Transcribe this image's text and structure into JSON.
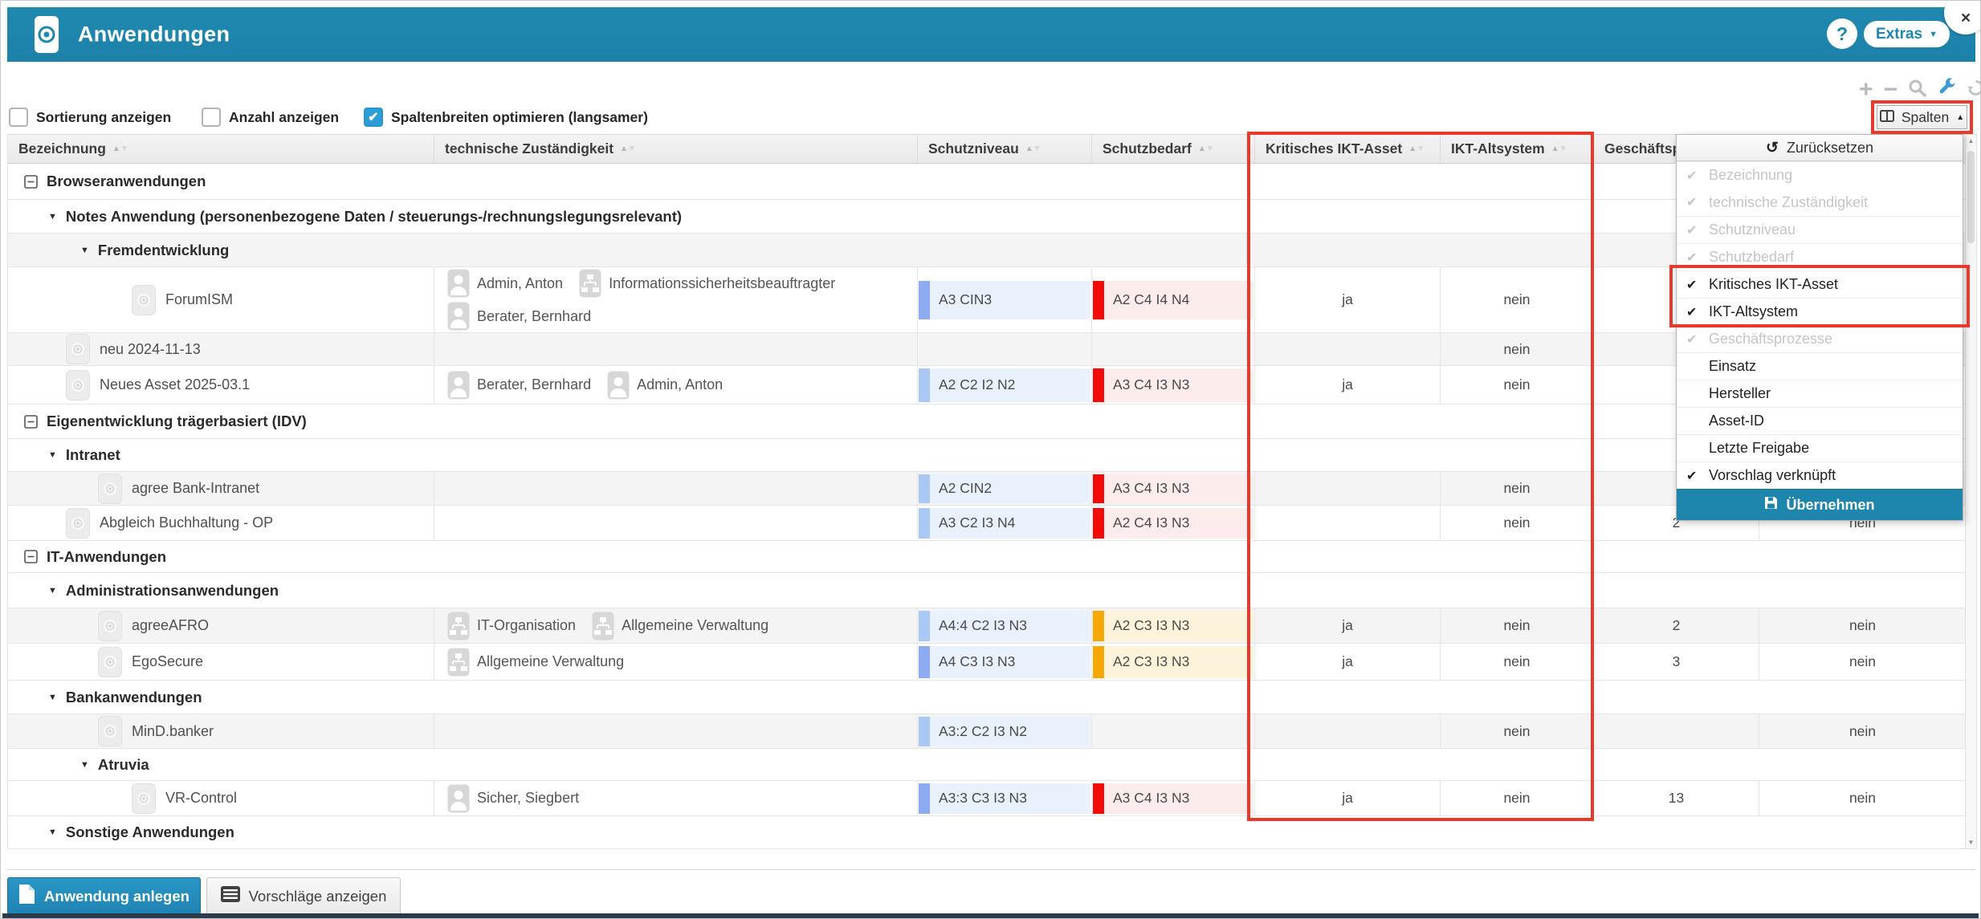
{
  "window": {
    "title": "Anwendungen",
    "help_label": "?",
    "extras_label": "Extras",
    "close_label": "×"
  },
  "icons": {
    "caret_up": "▲",
    "caret_down": "▼",
    "check": "✔",
    "reset": "↺",
    "sort_asc": "▲",
    "sort_desc": "▼",
    "tree_expanded": "▼",
    "plus": "+",
    "minus": "−"
  },
  "toolbar": {
    "checkboxes": [
      {
        "label": "Sortierung anzeigen",
        "checked": false
      },
      {
        "label": "Anzahl anzeigen",
        "checked": false
      },
      {
        "label": "Spaltenbreiten optimieren (langsamer)",
        "checked": true
      }
    ],
    "icons": [
      {
        "name": "add-icon"
      },
      {
        "name": "remove-icon"
      },
      {
        "name": "search-icon"
      },
      {
        "name": "wrench-icon"
      },
      {
        "name": "refresh-icon"
      }
    ],
    "columns_button": {
      "label": "Spalten",
      "state": "open"
    }
  },
  "table": {
    "headers": [
      {
        "label": "Bezeichnung",
        "sortable": true
      },
      {
        "label": "technische Zuständigkeit",
        "sortable": true
      },
      {
        "label": "Schutzniveau",
        "sortable": true
      },
      {
        "label": "Schutzbedarf",
        "sortable": true
      },
      {
        "label": "Kritisches IKT-Asset",
        "sortable": true
      },
      {
        "label": "IKT-Altsystem",
        "sortable": true
      },
      {
        "label": "Geschäftsprozesse",
        "sortable": true
      },
      {
        "label": "",
        "sortable": false
      }
    ],
    "rows": [
      {
        "type": "group",
        "level": 0,
        "label": "Browseranwendungen"
      },
      {
        "type": "group",
        "level": 1,
        "label": "Notes Anwendung (personenbezogene Daten / steuerungs-/rechnungslegungsrelevant)"
      },
      {
        "type": "group",
        "level": 2,
        "label": "Fremdentwicklung"
      },
      {
        "type": "app",
        "label": "ForumISM",
        "zust": [
          {
            "kind": "person",
            "name": "Admin, Anton"
          },
          {
            "kind": "org",
            "name": "Informationssicherheitsbeauftragter"
          },
          {
            "kind": "person",
            "name": "Berater, Bernhard"
          }
        ],
        "sniv": {
          "text": "A3 CIN3",
          "tone": "blue-mid"
        },
        "sbed": {
          "text": "A2 C4 I4 N4",
          "tone": "red"
        },
        "krit": "ja",
        "alt": "nein",
        "gesch": "",
        "vork": ""
      },
      {
        "type": "app",
        "label": "neu 2024-11-13",
        "zust": [],
        "sniv": null,
        "sbed": null,
        "krit": "",
        "alt": "nein",
        "gesch": "",
        "vork": ""
      },
      {
        "type": "app",
        "label": "Neues Asset 2025-03.1",
        "zust": [
          {
            "kind": "person",
            "name": "Berater, Bernhard"
          },
          {
            "kind": "person",
            "name": "Admin, Anton"
          }
        ],
        "sniv": {
          "text": "A2 C2 I2 N2",
          "tone": "blue-light"
        },
        "sbed": {
          "text": "A3 C4 I3 N3",
          "tone": "red"
        },
        "krit": "ja",
        "alt": "nein",
        "gesch": "",
        "vork": ""
      },
      {
        "type": "group",
        "level": 0,
        "label": "Eigenentwicklung trägerbasiert (IDV)"
      },
      {
        "type": "group",
        "level": 1,
        "label": "Intranet"
      },
      {
        "type": "app",
        "label": "agree Bank-Intranet",
        "zust": [],
        "sniv": {
          "text": "A2 CIN2",
          "tone": "blue-light"
        },
        "sbed": {
          "text": "A3 C4 I3 N3",
          "tone": "red"
        },
        "krit": "",
        "alt": "nein",
        "gesch": "",
        "vork": ""
      },
      {
        "type": "app",
        "label": "Abgleich Buchhaltung - OP",
        "zust": [],
        "sniv": {
          "text": "A3 C2 I3 N4",
          "tone": "blue-light"
        },
        "sbed": {
          "text": "A2 C4 I3 N3",
          "tone": "red"
        },
        "krit": "",
        "alt": "nein",
        "gesch": "2",
        "vork": "nein"
      },
      {
        "type": "group",
        "level": 0,
        "label": "IT-Anwendungen"
      },
      {
        "type": "group",
        "level": 1,
        "label": "Administrationsanwendungen"
      },
      {
        "type": "app",
        "label": "agreeAFRO",
        "zust": [
          {
            "kind": "org",
            "name": "IT-Organisation"
          },
          {
            "kind": "org",
            "name": "Allgemeine Verwaltung"
          }
        ],
        "sniv": {
          "text": "A4:4 C2 I3 N3",
          "tone": "blue-light"
        },
        "sbed": {
          "text": "A2 C3 I3 N3",
          "tone": "orange"
        },
        "krit": "ja",
        "alt": "nein",
        "gesch": "2",
        "vork": "nein"
      },
      {
        "type": "app",
        "label": "EgoSecure",
        "zust": [
          {
            "kind": "org",
            "name": "Allgemeine Verwaltung"
          }
        ],
        "sniv": {
          "text": "A4 C3 I3 N3",
          "tone": "blue-mid"
        },
        "sbed": {
          "text": "A2 C3 I3 N3",
          "tone": "orange"
        },
        "krit": "ja",
        "alt": "nein",
        "gesch": "3",
        "vork": "nein"
      },
      {
        "type": "group",
        "level": 1,
        "label": "Bankanwendungen"
      },
      {
        "type": "app",
        "label": "MinD.banker",
        "zust": [],
        "sniv": {
          "text": "A3:2 C2 I3 N2",
          "tone": "blue-light"
        },
        "sbed": null,
        "krit": "",
        "alt": "nein",
        "gesch": "",
        "vork": "nein"
      },
      {
        "type": "group",
        "level": 2,
        "label": "Atruvia"
      },
      {
        "type": "app",
        "label": "VR-Control",
        "zust": [
          {
            "kind": "person",
            "name": "Sicher, Siegbert"
          }
        ],
        "sniv": {
          "text": "A3:3 C3 I3 N3",
          "tone": "blue-mid"
        },
        "sbed": {
          "text": "A3 C4 I3 N3",
          "tone": "red"
        },
        "krit": "ja",
        "alt": "nein",
        "gesch": "13",
        "vork": "nein"
      },
      {
        "type": "group",
        "level": 1,
        "label": "Sonstige Anwendungen"
      }
    ]
  },
  "dropdown": {
    "reset_label": "Zurücksetzen",
    "apply_label": "Übernehmen",
    "items": [
      {
        "label": "Bezeichnung",
        "checked": true,
        "disabled": true
      },
      {
        "label": "technische Zuständigkeit",
        "checked": true,
        "disabled": true
      },
      {
        "label": "Schutzniveau",
        "checked": true,
        "disabled": true
      },
      {
        "label": "Schutzbedarf",
        "checked": true,
        "disabled": true
      },
      {
        "label": "Kritisches IKT-Asset",
        "checked": true,
        "disabled": false
      },
      {
        "label": "IKT-Altsystem",
        "checked": true,
        "disabled": false
      },
      {
        "label": "Geschäftsprozesse",
        "checked": true,
        "disabled": true
      },
      {
        "label": "Einsatz",
        "checked": false,
        "disabled": false
      },
      {
        "label": "Hersteller",
        "checked": false,
        "disabled": false
      },
      {
        "label": "Asset-ID",
        "checked": false,
        "disabled": false
      },
      {
        "label": "Letzte Freigabe",
        "checked": false,
        "disabled": false
      },
      {
        "label": "Vorschlag verknüpft",
        "checked": true,
        "disabled": false
      }
    ]
  },
  "footer": {
    "create_label": "Anwendung anlegen",
    "suggestions_label": "Vorschläge anzeigen"
  },
  "colors": {
    "accent": "#1f87ae",
    "annotation_red": "#e8392c",
    "checkbox_blue": "#2d9dd6",
    "level_bg": "#e9f2fc",
    "level_bar_light": "#a9c8f3",
    "level_bar_mid": "#8cabf0",
    "bedarf_red_bar": "#f30b07",
    "bedarf_red_bg": "#fdecec",
    "bedarf_orange_bar": "#f5a800",
    "bedarf_orange_bg": "#fdf3da"
  }
}
